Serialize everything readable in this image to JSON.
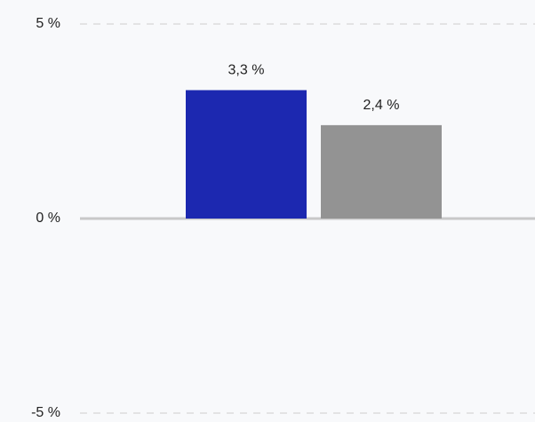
{
  "chart_data": {
    "type": "bar",
    "categories": [
      null,
      null
    ],
    "values": [
      3.3,
      2.4
    ],
    "value_labels": [
      "3,3 %",
      "2,4 %"
    ],
    "colors": [
      "#1c28b0",
      "#939393"
    ],
    "ylim": [
      -5,
      5
    ],
    "yticks": [
      {
        "value": 5,
        "label": "5 %"
      },
      {
        "value": 0,
        "label": "0 %"
      },
      {
        "value": -5,
        "label": "-5 %"
      }
    ],
    "grid": true
  }
}
